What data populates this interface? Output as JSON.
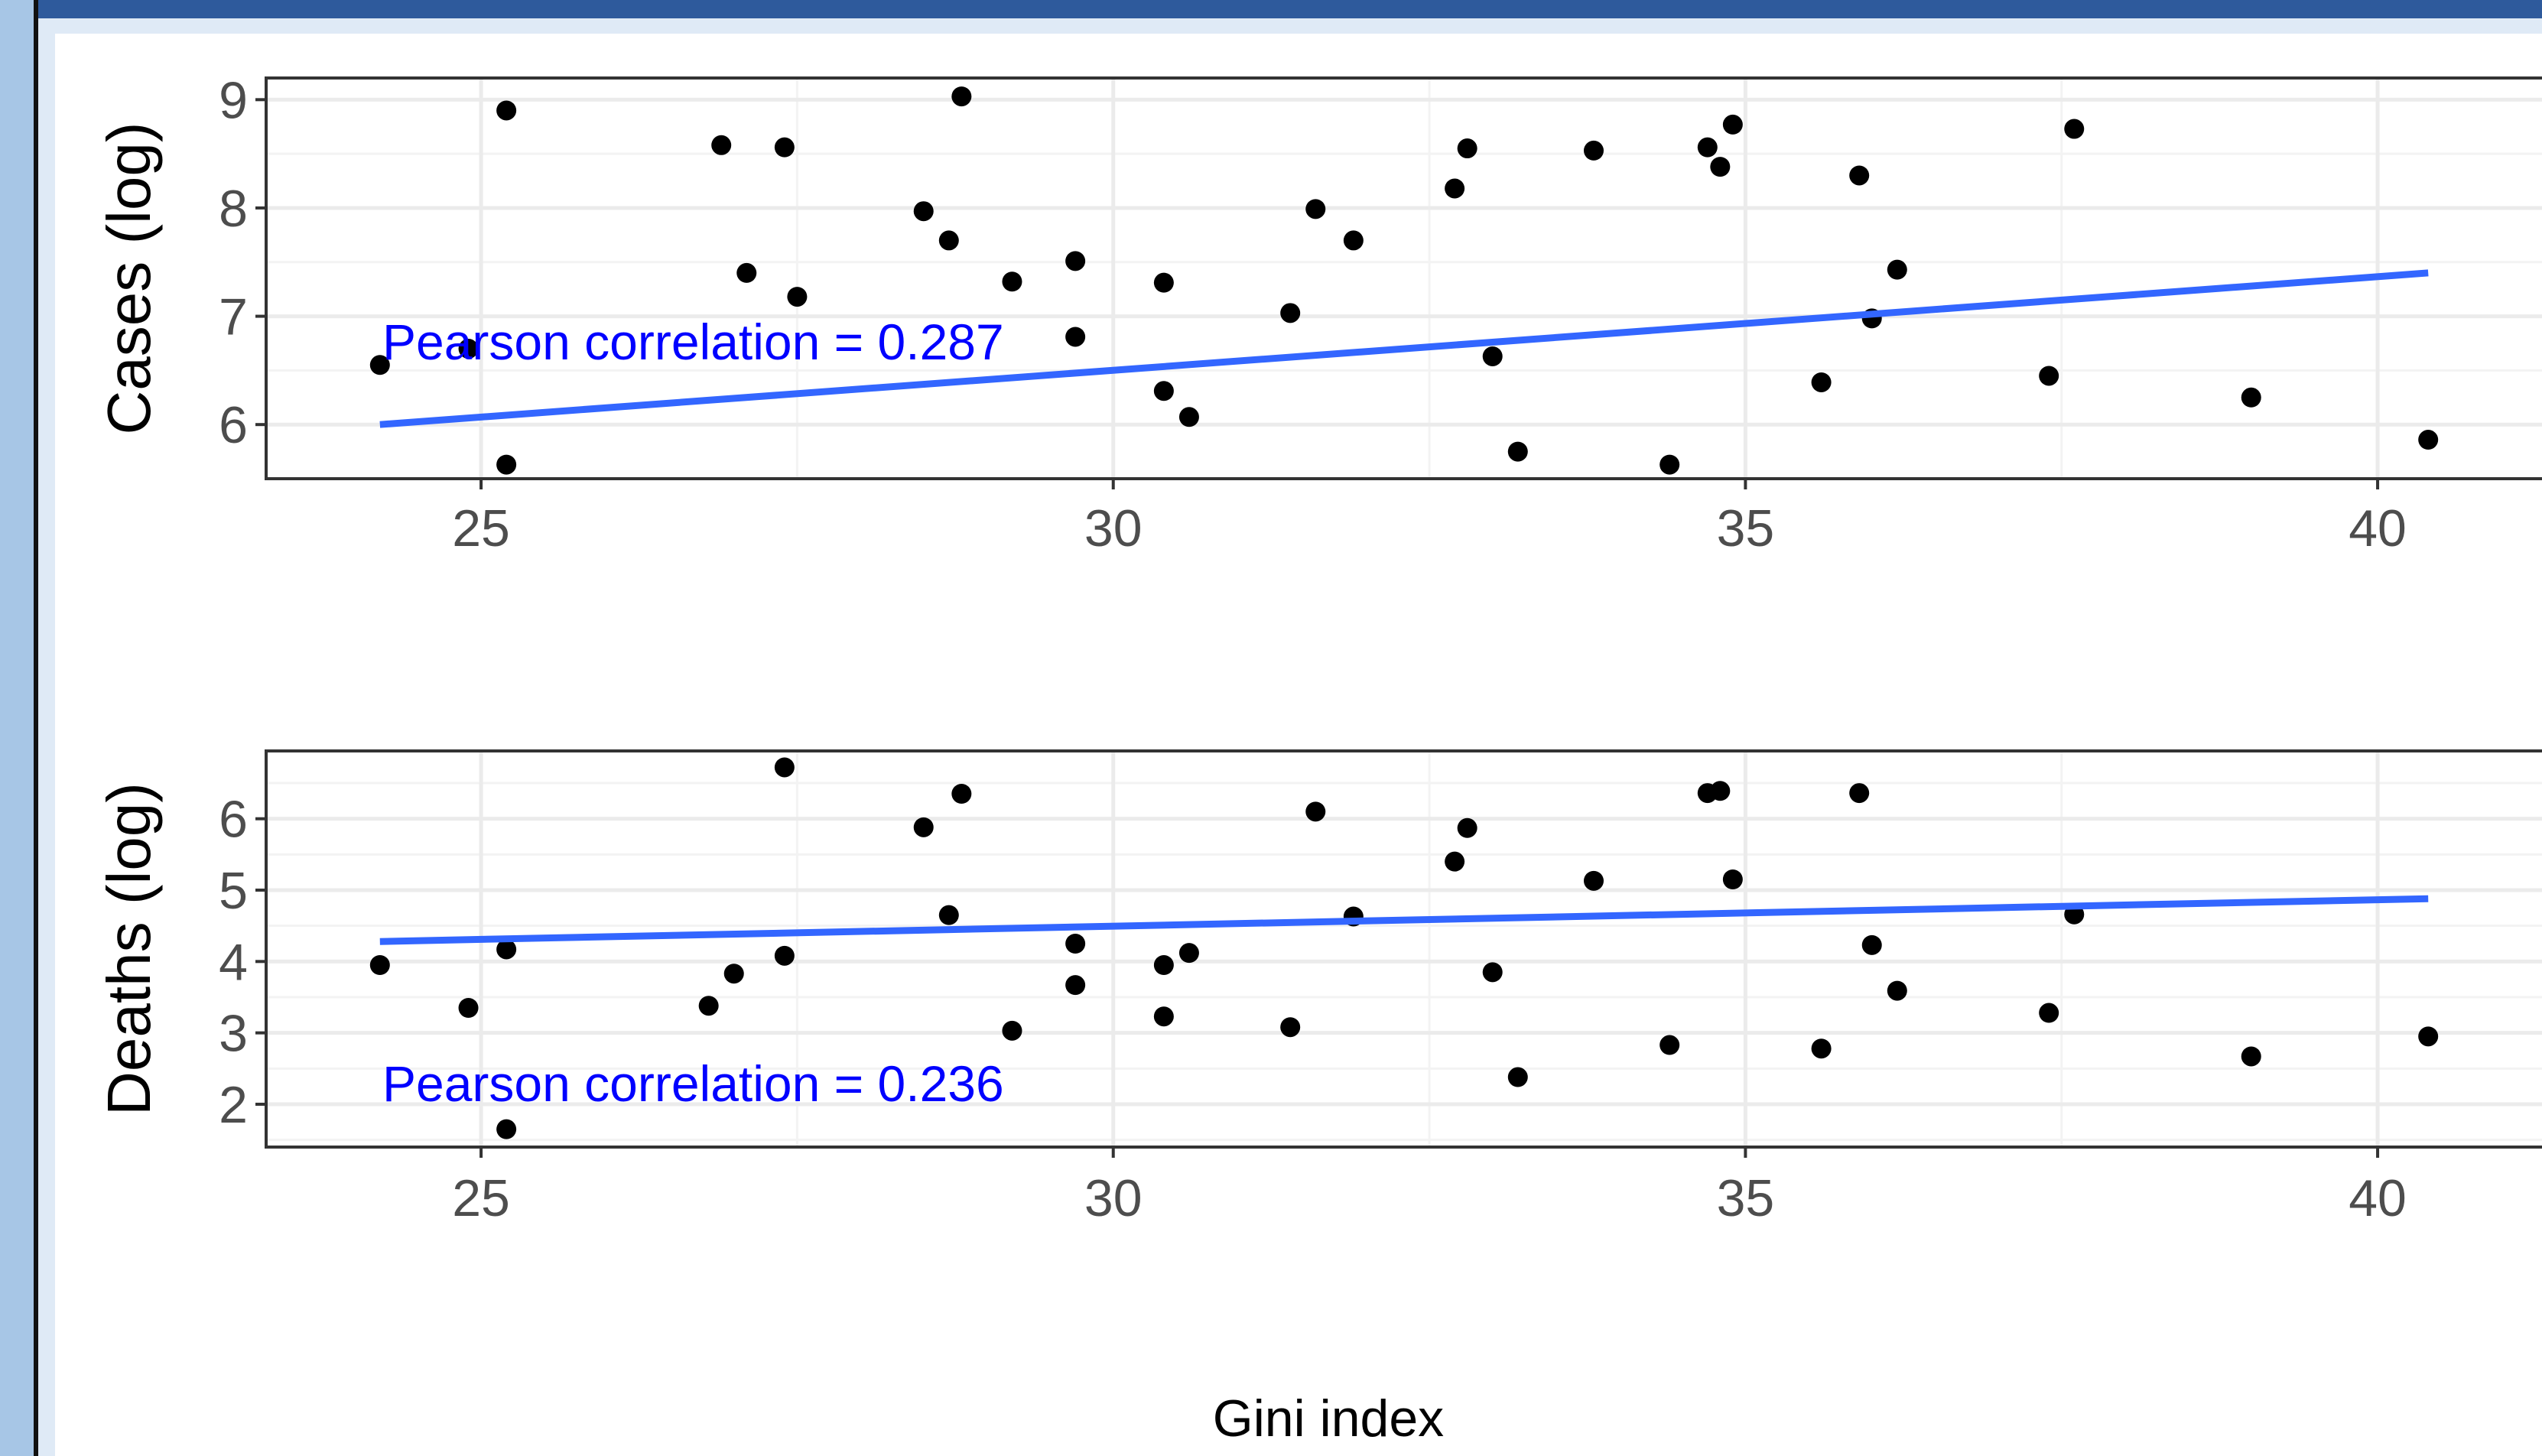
{
  "chart_data": [
    {
      "type": "scatter",
      "xlabel": "",
      "ylabel": "Cases (log)",
      "xlim": [
        23.3,
        41.3
      ],
      "ylim": [
        5.5,
        9.2
      ],
      "xticks": [
        25,
        30,
        35,
        40
      ],
      "yticks": [
        6,
        7,
        8,
        9
      ],
      "grid": true,
      "annotation": "Pearson correlation =  0.287",
      "regression": {
        "x": [
          24.2,
          40.4
        ],
        "y": [
          6.0,
          7.4
        ]
      },
      "points": [
        {
          "x": 24.2,
          "y": 6.55
        },
        {
          "x": 24.9,
          "y": 6.7
        },
        {
          "x": 25.2,
          "y": 8.9
        },
        {
          "x": 25.2,
          "y": 5.63
        },
        {
          "x": 26.9,
          "y": 8.58
        },
        {
          "x": 27.1,
          "y": 7.4
        },
        {
          "x": 27.4,
          "y": 8.56
        },
        {
          "x": 27.5,
          "y": 7.18
        },
        {
          "x": 28.5,
          "y": 7.97
        },
        {
          "x": 28.7,
          "y": 7.7
        },
        {
          "x": 28.8,
          "y": 9.03
        },
        {
          "x": 29.2,
          "y": 7.32
        },
        {
          "x": 29.7,
          "y": 7.51
        },
        {
          "x": 29.7,
          "y": 6.81
        },
        {
          "x": 30.4,
          "y": 7.31
        },
        {
          "x": 30.4,
          "y": 6.31
        },
        {
          "x": 30.6,
          "y": 6.07
        },
        {
          "x": 31.4,
          "y": 7.03
        },
        {
          "x": 31.6,
          "y": 7.99
        },
        {
          "x": 31.9,
          "y": 7.7
        },
        {
          "x": 32.7,
          "y": 8.18
        },
        {
          "x": 32.8,
          "y": 8.55
        },
        {
          "x": 33.0,
          "y": 6.63
        },
        {
          "x": 33.2,
          "y": 5.75
        },
        {
          "x": 33.8,
          "y": 8.53
        },
        {
          "x": 34.4,
          "y": 5.63
        },
        {
          "x": 34.7,
          "y": 8.56
        },
        {
          "x": 34.8,
          "y": 8.38
        },
        {
          "x": 34.9,
          "y": 8.77
        },
        {
          "x": 35.6,
          "y": 6.39
        },
        {
          "x": 35.9,
          "y": 8.3
        },
        {
          "x": 36.0,
          "y": 6.98
        },
        {
          "x": 36.2,
          "y": 7.43
        },
        {
          "x": 37.4,
          "y": 6.45
        },
        {
          "x": 37.6,
          "y": 8.73
        },
        {
          "x": 39.0,
          "y": 6.25
        },
        {
          "x": 40.4,
          "y": 5.86
        }
      ]
    },
    {
      "type": "scatter",
      "xlabel": "Gini index",
      "ylabel": "Deaths (log)",
      "xlim": [
        23.3,
        41.3
      ],
      "ylim": [
        1.4,
        6.95
      ],
      "xticks": [
        25,
        30,
        35,
        40
      ],
      "yticks": [
        2,
        3,
        4,
        5,
        6
      ],
      "grid": true,
      "annotation": "Pearson correlation =  0.236",
      "regression": {
        "x": [
          24.2,
          40.4
        ],
        "y": [
          4.28,
          4.88
        ]
      },
      "points": [
        {
          "x": 24.2,
          "y": 3.95
        },
        {
          "x": 24.9,
          "y": 3.35
        },
        {
          "x": 25.2,
          "y": 4.17
        },
        {
          "x": 25.2,
          "y": 1.65
        },
        {
          "x": 26.8,
          "y": 3.38
        },
        {
          "x": 27.0,
          "y": 3.83
        },
        {
          "x": 27.4,
          "y": 6.72
        },
        {
          "x": 27.4,
          "y": 4.08
        },
        {
          "x": 28.5,
          "y": 5.88
        },
        {
          "x": 28.7,
          "y": 4.65
        },
        {
          "x": 28.8,
          "y": 6.35
        },
        {
          "x": 29.2,
          "y": 3.03
        },
        {
          "x": 29.7,
          "y": 4.25
        },
        {
          "x": 29.7,
          "y": 3.67
        },
        {
          "x": 30.4,
          "y": 3.95
        },
        {
          "x": 30.4,
          "y": 3.23
        },
        {
          "x": 30.6,
          "y": 4.12
        },
        {
          "x": 31.4,
          "y": 3.08
        },
        {
          "x": 31.6,
          "y": 6.1
        },
        {
          "x": 31.9,
          "y": 4.63
        },
        {
          "x": 32.7,
          "y": 5.4
        },
        {
          "x": 32.8,
          "y": 5.87
        },
        {
          "x": 33.0,
          "y": 3.85
        },
        {
          "x": 33.2,
          "y": 2.38
        },
        {
          "x": 33.8,
          "y": 5.13
        },
        {
          "x": 34.4,
          "y": 2.83
        },
        {
          "x": 34.7,
          "y": 6.36
        },
        {
          "x": 34.8,
          "y": 6.39
        },
        {
          "x": 34.9,
          "y": 5.15
        },
        {
          "x": 35.6,
          "y": 2.78
        },
        {
          "x": 35.9,
          "y": 6.36
        },
        {
          "x": 36.0,
          "y": 4.23
        },
        {
          "x": 36.2,
          "y": 3.59
        },
        {
          "x": 37.4,
          "y": 3.28
        },
        {
          "x": 37.6,
          "y": 4.66
        },
        {
          "x": 39.0,
          "y": 2.67
        },
        {
          "x": 40.4,
          "y": 2.95
        }
      ]
    }
  ],
  "colors": {
    "points": "#000000",
    "regression_line": "#3366ff",
    "annotation_text": "#0000ff",
    "panel_bg": "#ffffff",
    "grid_major": "#ebebeb",
    "grid_minor": "#f3f3f3",
    "panel_border": "#333333",
    "tick_label": "#4d4d4d"
  }
}
